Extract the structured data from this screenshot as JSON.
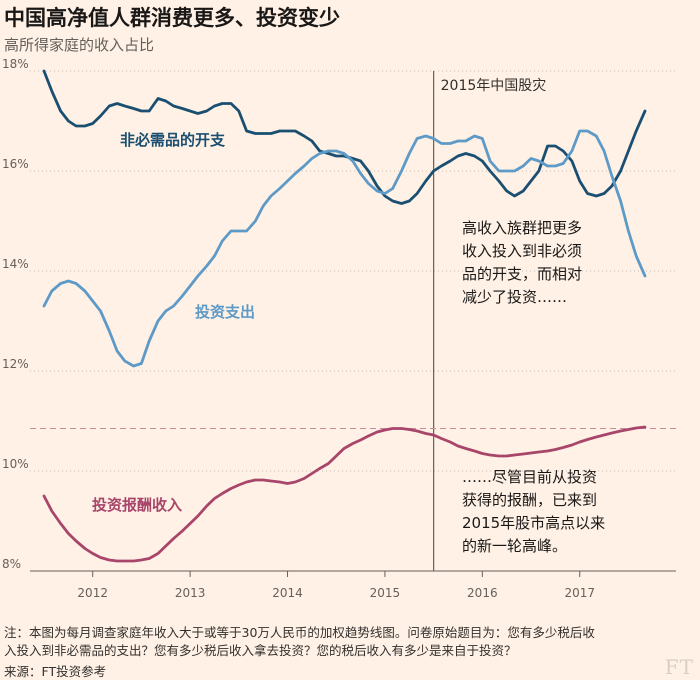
{
  "title": "中国高净值人群消费更多、投资变少",
  "subtitle": "高所得家庭的收入占比",
  "chart_data": {
    "type": "line",
    "title": "中国高净值人群消费更多、投资变少",
    "subtitle": "高所得家庭的收入占比",
    "ylim": [
      8,
      18
    ],
    "yticks": [
      8,
      10,
      12,
      14,
      16,
      18
    ],
    "ytick_labels": [
      "8%",
      "10%",
      "12%",
      "14%",
      "16%",
      "18%"
    ],
    "xlim": [
      2011.5,
      2017.67
    ],
    "xticks": [
      2012,
      2013,
      2014,
      2015,
      2016,
      2017
    ],
    "xtick_labels": [
      "2012",
      "2013",
      "2014",
      "2015",
      "2016",
      "2017"
    ],
    "grid": true,
    "reference_lines": [
      {
        "x": 2015.5,
        "label": "2015年中国股灾"
      },
      {
        "y": 10.85
      }
    ],
    "series": [
      {
        "name": "非必需品的开支",
        "color": "#1a4f72",
        "points": [
          [
            2011.5,
            18.0
          ],
          [
            2011.58,
            17.6
          ],
          [
            2011.67,
            17.2
          ],
          [
            2011.75,
            17.0
          ],
          [
            2011.83,
            16.9
          ],
          [
            2011.92,
            16.9
          ],
          [
            2012.0,
            16.95
          ],
          [
            2012.08,
            17.1
          ],
          [
            2012.17,
            17.3
          ],
          [
            2012.25,
            17.35
          ],
          [
            2012.33,
            17.3
          ],
          [
            2012.42,
            17.25
          ],
          [
            2012.5,
            17.2
          ],
          [
            2012.58,
            17.2
          ],
          [
            2012.67,
            17.45
          ],
          [
            2012.75,
            17.4
          ],
          [
            2012.83,
            17.3
          ],
          [
            2012.92,
            17.25
          ],
          [
            2013.0,
            17.2
          ],
          [
            2013.08,
            17.15
          ],
          [
            2013.17,
            17.2
          ],
          [
            2013.25,
            17.3
          ],
          [
            2013.33,
            17.35
          ],
          [
            2013.42,
            17.35
          ],
          [
            2013.5,
            17.2
          ],
          [
            2013.58,
            16.8
          ],
          [
            2013.67,
            16.75
          ],
          [
            2013.75,
            16.75
          ],
          [
            2013.83,
            16.75
          ],
          [
            2013.92,
            16.8
          ],
          [
            2014.0,
            16.8
          ],
          [
            2014.08,
            16.8
          ],
          [
            2014.17,
            16.7
          ],
          [
            2014.25,
            16.6
          ],
          [
            2014.33,
            16.4
          ],
          [
            2014.42,
            16.35
          ],
          [
            2014.5,
            16.3
          ],
          [
            2014.58,
            16.3
          ],
          [
            2014.67,
            16.25
          ],
          [
            2014.75,
            16.2
          ],
          [
            2014.83,
            16.0
          ],
          [
            2014.92,
            15.7
          ],
          [
            2015.0,
            15.5
          ],
          [
            2015.08,
            15.4
          ],
          [
            2015.17,
            15.35
          ],
          [
            2015.25,
            15.4
          ],
          [
            2015.33,
            15.55
          ],
          [
            2015.42,
            15.8
          ],
          [
            2015.5,
            16.0
          ],
          [
            2015.58,
            16.1
          ],
          [
            2015.67,
            16.2
          ],
          [
            2015.75,
            16.3
          ],
          [
            2015.83,
            16.35
          ],
          [
            2015.92,
            16.3
          ],
          [
            2016.0,
            16.2
          ],
          [
            2016.08,
            16.0
          ],
          [
            2016.17,
            15.8
          ],
          [
            2016.25,
            15.6
          ],
          [
            2016.33,
            15.5
          ],
          [
            2016.42,
            15.6
          ],
          [
            2016.5,
            15.8
          ],
          [
            2016.58,
            16.0
          ],
          [
            2016.67,
            16.5
          ],
          [
            2016.75,
            16.5
          ],
          [
            2016.83,
            16.4
          ],
          [
            2016.92,
            16.2
          ],
          [
            2017.0,
            15.8
          ],
          [
            2017.08,
            15.55
          ],
          [
            2017.17,
            15.5
          ],
          [
            2017.25,
            15.55
          ],
          [
            2017.33,
            15.7
          ],
          [
            2017.42,
            16.0
          ],
          [
            2017.5,
            16.4
          ],
          [
            2017.58,
            16.8
          ],
          [
            2017.67,
            17.2
          ]
        ]
      },
      {
        "name": "投资支出",
        "color": "#5e9ac7",
        "points": [
          [
            2011.5,
            13.3
          ],
          [
            2011.58,
            13.6
          ],
          [
            2011.67,
            13.75
          ],
          [
            2011.75,
            13.8
          ],
          [
            2011.83,
            13.75
          ],
          [
            2011.92,
            13.6
          ],
          [
            2012.0,
            13.4
          ],
          [
            2012.08,
            13.2
          ],
          [
            2012.17,
            12.8
          ],
          [
            2012.25,
            12.4
          ],
          [
            2012.33,
            12.2
          ],
          [
            2012.42,
            12.1
          ],
          [
            2012.5,
            12.15
          ],
          [
            2012.58,
            12.6
          ],
          [
            2012.67,
            13.0
          ],
          [
            2012.75,
            13.2
          ],
          [
            2012.83,
            13.3
          ],
          [
            2012.92,
            13.5
          ],
          [
            2013.0,
            13.7
          ],
          [
            2013.08,
            13.9
          ],
          [
            2013.17,
            14.1
          ],
          [
            2013.25,
            14.3
          ],
          [
            2013.33,
            14.6
          ],
          [
            2013.42,
            14.8
          ],
          [
            2013.5,
            14.8
          ],
          [
            2013.58,
            14.8
          ],
          [
            2013.67,
            15.0
          ],
          [
            2013.75,
            15.3
          ],
          [
            2013.83,
            15.5
          ],
          [
            2013.92,
            15.65
          ],
          [
            2014.0,
            15.8
          ],
          [
            2014.08,
            15.95
          ],
          [
            2014.17,
            16.1
          ],
          [
            2014.25,
            16.25
          ],
          [
            2014.33,
            16.35
          ],
          [
            2014.42,
            16.4
          ],
          [
            2014.5,
            16.4
          ],
          [
            2014.58,
            16.35
          ],
          [
            2014.67,
            16.2
          ],
          [
            2014.75,
            15.95
          ],
          [
            2014.83,
            15.75
          ],
          [
            2014.92,
            15.6
          ],
          [
            2015.0,
            15.55
          ],
          [
            2015.08,
            15.65
          ],
          [
            2015.17,
            16.0
          ],
          [
            2015.25,
            16.35
          ],
          [
            2015.33,
            16.65
          ],
          [
            2015.42,
            16.7
          ],
          [
            2015.5,
            16.65
          ],
          [
            2015.58,
            16.55
          ],
          [
            2015.67,
            16.55
          ],
          [
            2015.75,
            16.6
          ],
          [
            2015.83,
            16.6
          ],
          [
            2015.92,
            16.7
          ],
          [
            2016.0,
            16.65
          ],
          [
            2016.08,
            16.2
          ],
          [
            2016.17,
            16.0
          ],
          [
            2016.25,
            16.0
          ],
          [
            2016.33,
            16.0
          ],
          [
            2016.42,
            16.1
          ],
          [
            2016.5,
            16.25
          ],
          [
            2016.58,
            16.2
          ],
          [
            2016.67,
            16.1
          ],
          [
            2016.75,
            16.1
          ],
          [
            2016.83,
            16.15
          ],
          [
            2016.92,
            16.4
          ],
          [
            2017.0,
            16.8
          ],
          [
            2017.08,
            16.8
          ],
          [
            2017.17,
            16.7
          ],
          [
            2017.25,
            16.4
          ],
          [
            2017.33,
            15.9
          ],
          [
            2017.42,
            15.4
          ],
          [
            2017.5,
            14.8
          ],
          [
            2017.58,
            14.3
          ],
          [
            2017.67,
            13.9
          ]
        ]
      },
      {
        "name": "投资报酬收入",
        "color": "#a8456b",
        "points": [
          [
            2011.5,
            9.5
          ],
          [
            2011.58,
            9.2
          ],
          [
            2011.67,
            8.95
          ],
          [
            2011.75,
            8.75
          ],
          [
            2011.83,
            8.6
          ],
          [
            2011.92,
            8.45
          ],
          [
            2012.0,
            8.35
          ],
          [
            2012.08,
            8.27
          ],
          [
            2012.17,
            8.22
          ],
          [
            2012.25,
            8.2
          ],
          [
            2012.33,
            8.2
          ],
          [
            2012.42,
            8.2
          ],
          [
            2012.5,
            8.22
          ],
          [
            2012.58,
            8.25
          ],
          [
            2012.67,
            8.35
          ],
          [
            2012.75,
            8.5
          ],
          [
            2012.83,
            8.65
          ],
          [
            2012.92,
            8.8
          ],
          [
            2013.0,
            8.95
          ],
          [
            2013.08,
            9.1
          ],
          [
            2013.17,
            9.3
          ],
          [
            2013.25,
            9.45
          ],
          [
            2013.33,
            9.55
          ],
          [
            2013.42,
            9.65
          ],
          [
            2013.5,
            9.72
          ],
          [
            2013.58,
            9.78
          ],
          [
            2013.67,
            9.82
          ],
          [
            2013.75,
            9.82
          ],
          [
            2013.83,
            9.8
          ],
          [
            2013.92,
            9.78
          ],
          [
            2014.0,
            9.75
          ],
          [
            2014.08,
            9.78
          ],
          [
            2014.17,
            9.85
          ],
          [
            2014.25,
            9.95
          ],
          [
            2014.33,
            10.05
          ],
          [
            2014.42,
            10.15
          ],
          [
            2014.5,
            10.3
          ],
          [
            2014.58,
            10.45
          ],
          [
            2014.67,
            10.55
          ],
          [
            2014.75,
            10.62
          ],
          [
            2014.83,
            10.7
          ],
          [
            2014.92,
            10.78
          ],
          [
            2015.0,
            10.82
          ],
          [
            2015.08,
            10.85
          ],
          [
            2015.17,
            10.85
          ],
          [
            2015.25,
            10.83
          ],
          [
            2015.33,
            10.8
          ],
          [
            2015.42,
            10.75
          ],
          [
            2015.5,
            10.72
          ],
          [
            2015.58,
            10.65
          ],
          [
            2015.67,
            10.58
          ],
          [
            2015.75,
            10.5
          ],
          [
            2015.83,
            10.45
          ],
          [
            2015.92,
            10.4
          ],
          [
            2016.0,
            10.35
          ],
          [
            2016.08,
            10.32
          ],
          [
            2016.17,
            10.3
          ],
          [
            2016.25,
            10.3
          ],
          [
            2016.33,
            10.32
          ],
          [
            2016.42,
            10.34
          ],
          [
            2016.5,
            10.36
          ],
          [
            2016.58,
            10.38
          ],
          [
            2016.67,
            10.4
          ],
          [
            2016.75,
            10.43
          ],
          [
            2016.83,
            10.47
          ],
          [
            2016.92,
            10.52
          ],
          [
            2017.0,
            10.58
          ],
          [
            2017.08,
            10.63
          ],
          [
            2017.17,
            10.68
          ],
          [
            2017.25,
            10.72
          ],
          [
            2017.33,
            10.76
          ],
          [
            2017.42,
            10.8
          ],
          [
            2017.5,
            10.83
          ],
          [
            2017.58,
            10.86
          ],
          [
            2017.67,
            10.88
          ]
        ]
      }
    ],
    "series_labels": [
      "非必需品的开支",
      "投资支出",
      "投资报酬收入"
    ],
    "annotations": [
      "高收入族群把更多",
      "收入投入到非必须",
      "品的开支，而相对",
      "减少了投资……",
      "……尽管目前从投资",
      "获得的报酬，已来到",
      "2015年股市高点以来",
      "的新一轮高峰。"
    ],
    "event_label": "2015年中国股灾"
  },
  "footer": {
    "note_line1": "注：本图为每月调查家庭年收入大于或等于30万人民币的加权趋势线图。问卷原始题目为：您有多少税后收",
    "note_line2": "入投入到非必需品的支出？您有多少税后收入拿去投资？您的税后收入有多少是来自于投资？",
    "source": "来源：FT投资参考",
    "logo": "FT"
  },
  "colors": {
    "background": "#fff1e5",
    "grid": "#c9bfb6",
    "reference_line": "#66605c",
    "dashed_line": "#c98b97"
  }
}
